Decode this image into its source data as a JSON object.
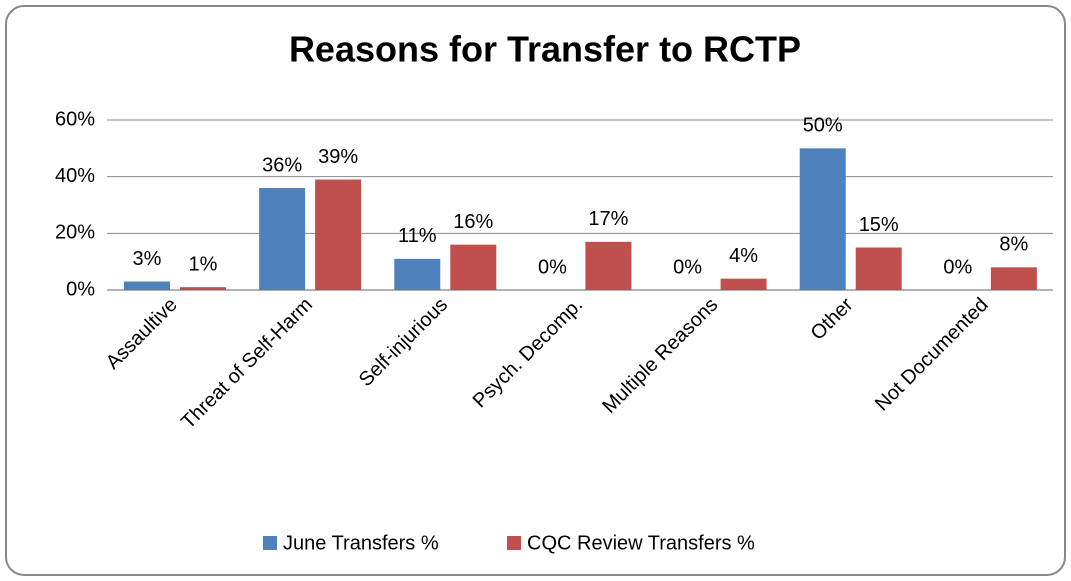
{
  "chart_data": {
    "type": "bar",
    "title": "Reasons for Transfer to RCTP",
    "categories": [
      "Assaultive",
      "Threat of Self-Harm",
      "Self-injurious",
      "Psych. Decomp.",
      "Multiple Reasons",
      "Other",
      "Not Documented"
    ],
    "series": [
      {
        "name": "June Transfers %",
        "color": "#4f81bd",
        "values": [
          3,
          36,
          11,
          0,
          0,
          50,
          0
        ],
        "value_labels": [
          "3%",
          "36%",
          "11%",
          "0%",
          "0%",
          "50%",
          "0%"
        ]
      },
      {
        "name": "CQC Review Transfers %",
        "color": "#c0504d",
        "values": [
          1,
          39,
          16,
          17,
          4,
          15,
          8
        ],
        "value_labels": [
          "1%",
          "39%",
          "16%",
          "17%",
          "4%",
          "15%",
          "8%"
        ]
      }
    ],
    "ylim": [
      0,
      60
    ],
    "yticks": [
      {
        "value": 0,
        "label": "0%"
      },
      {
        "value": 20,
        "label": "20%"
      },
      {
        "value": 40,
        "label": "40%"
      },
      {
        "value": 60,
        "label": "60%"
      }
    ],
    "grid": true,
    "legend": "bottom"
  }
}
